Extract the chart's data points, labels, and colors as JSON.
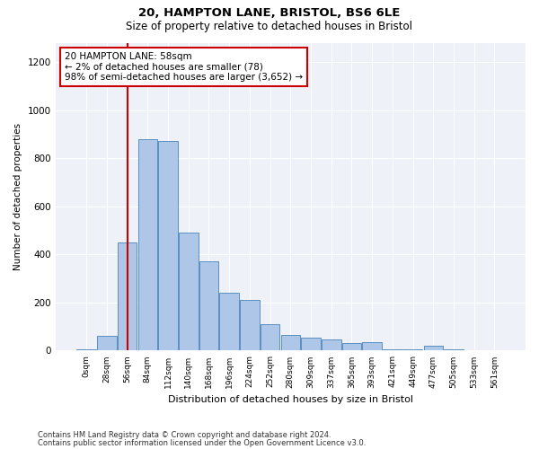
{
  "title1": "20, HAMPTON LANE, BRISTOL, BS6 6LE",
  "title2": "Size of property relative to detached houses in Bristol",
  "xlabel": "Distribution of detached houses by size in Bristol",
  "ylabel": "Number of detached properties",
  "bar_labels": [
    "0sqm",
    "28sqm",
    "56sqm",
    "84sqm",
    "112sqm",
    "140sqm",
    "168sqm",
    "196sqm",
    "224sqm",
    "252sqm",
    "280sqm",
    "309sqm",
    "337sqm",
    "365sqm",
    "393sqm",
    "421sqm",
    "449sqm",
    "477sqm",
    "505sqm",
    "533sqm",
    "561sqm"
  ],
  "bar_heights": [
    5,
    60,
    450,
    880,
    870,
    490,
    370,
    240,
    210,
    110,
    65,
    55,
    45,
    30,
    35,
    5,
    5,
    20,
    5,
    0,
    0
  ],
  "bar_color": "#aec6e8",
  "bar_edge_color": "#5a8fc0",
  "vline_color": "#cc0000",
  "annotation_text": "20 HAMPTON LANE: 58sqm\n← 2% of detached houses are smaller (78)\n98% of semi-detached houses are larger (3,652) →",
  "annotation_box_color": "#cc0000",
  "bg_color": "#eef2f8",
  "footer1": "Contains HM Land Registry data © Crown copyright and database right 2024.",
  "footer2": "Contains public sector information licensed under the Open Government Licence v3.0.",
  "ylim": [
    0,
    1280
  ],
  "yticks": [
    0,
    200,
    400,
    600,
    800,
    1000,
    1200
  ]
}
